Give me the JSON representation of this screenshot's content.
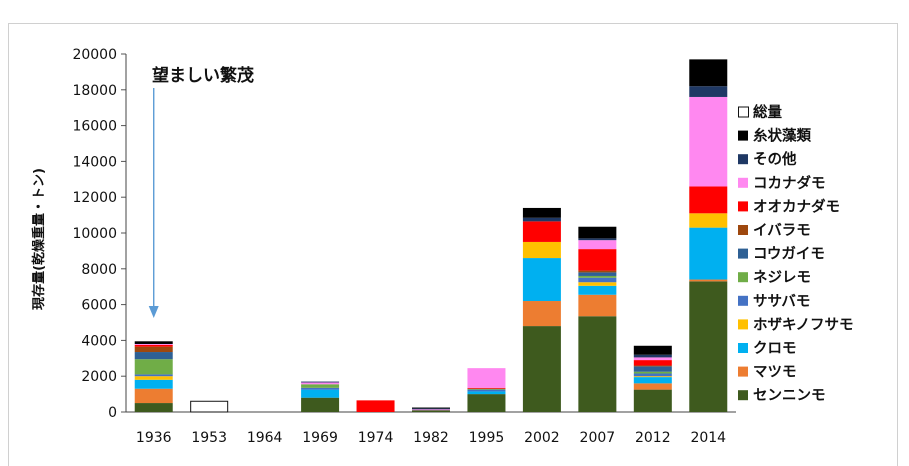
{
  "top_strip_text": "",
  "caption": "",
  "chart_data": {
    "type": "bar",
    "stacked": true,
    "title": "",
    "xlabel": "",
    "ylabel": "現存量(乾燥重量・トン)",
    "ylim": [
      0,
      20000
    ],
    "yticks": [
      "0",
      "2000",
      "4000",
      "6000",
      "8000",
      "10000",
      "12000",
      "14000",
      "16000",
      "18000",
      "20000"
    ],
    "categories": [
      "1936",
      "1953",
      "1964",
      "1969",
      "1974",
      "1982",
      "1995",
      "2002",
      "2007",
      "2012",
      "2014"
    ],
    "annotation": {
      "text": "望ましい繁茂",
      "category": "1936",
      "arrow_color": "#5b9bd5"
    },
    "legend_position": "right",
    "total": {
      "name": "総量",
      "values": [
        0,
        600,
        0,
        0,
        0,
        0,
        0,
        0,
        0,
        0,
        0
      ]
    },
    "series": [
      {
        "name": "センニンモ",
        "color": "#3e5a1e",
        "values": [
          500,
          0,
          0,
          800,
          0,
          100,
          1000,
          4800,
          5350,
          1250,
          7300
        ]
      },
      {
        "name": "マツモ",
        "color": "#ed7d31",
        "values": [
          800,
          0,
          0,
          0,
          0,
          0,
          0,
          1400,
          1200,
          350,
          100
        ]
      },
      {
        "name": "クロモ",
        "color": "#00b0f0",
        "values": [
          500,
          0,
          0,
          450,
          0,
          0,
          150,
          2400,
          500,
          350,
          2900
        ]
      },
      {
        "name": "ホザキノフサモ",
        "color": "#ffc000",
        "values": [
          200,
          0,
          0,
          0,
          0,
          0,
          0,
          900,
          200,
          50,
          800
        ]
      },
      {
        "name": "ササバモ",
        "color": "#4472c4",
        "values": [
          100,
          0,
          0,
          100,
          0,
          0,
          100,
          0,
          250,
          150,
          0
        ]
      },
      {
        "name": "ネジレモ",
        "color": "#70ad47",
        "values": [
          850,
          0,
          0,
          200,
          0,
          0,
          50,
          0,
          100,
          100,
          0
        ]
      },
      {
        "name": "コウガイモ",
        "color": "#2e6094",
        "values": [
          400,
          0,
          0,
          0,
          0,
          0,
          0,
          0,
          200,
          300,
          0
        ]
      },
      {
        "name": "イバラモ",
        "color": "#9e480e",
        "values": [
          300,
          0,
          0,
          0,
          0,
          0,
          0,
          0,
          100,
          50,
          0
        ]
      },
      {
        "name": "オオカナダモ",
        "color": "#ff0000",
        "values": [
          100,
          0,
          0,
          0,
          650,
          0,
          50,
          1150,
          1200,
          300,
          1500
        ]
      },
      {
        "name": "コカナダモ",
        "color": "#ff88f0",
        "values": [
          50,
          0,
          0,
          100,
          0,
          50,
          1100,
          0,
          500,
          150,
          5000
        ]
      },
      {
        "name": "その他",
        "color": "#1f3864",
        "values": [
          0,
          0,
          0,
          50,
          0,
          50,
          0,
          200,
          100,
          150,
          600
        ]
      },
      {
        "name": "糸状藻類",
        "color": "#000000",
        "values": [
          150,
          0,
          0,
          0,
          0,
          50,
          0,
          550,
          650,
          500,
          1500
        ]
      }
    ]
  }
}
